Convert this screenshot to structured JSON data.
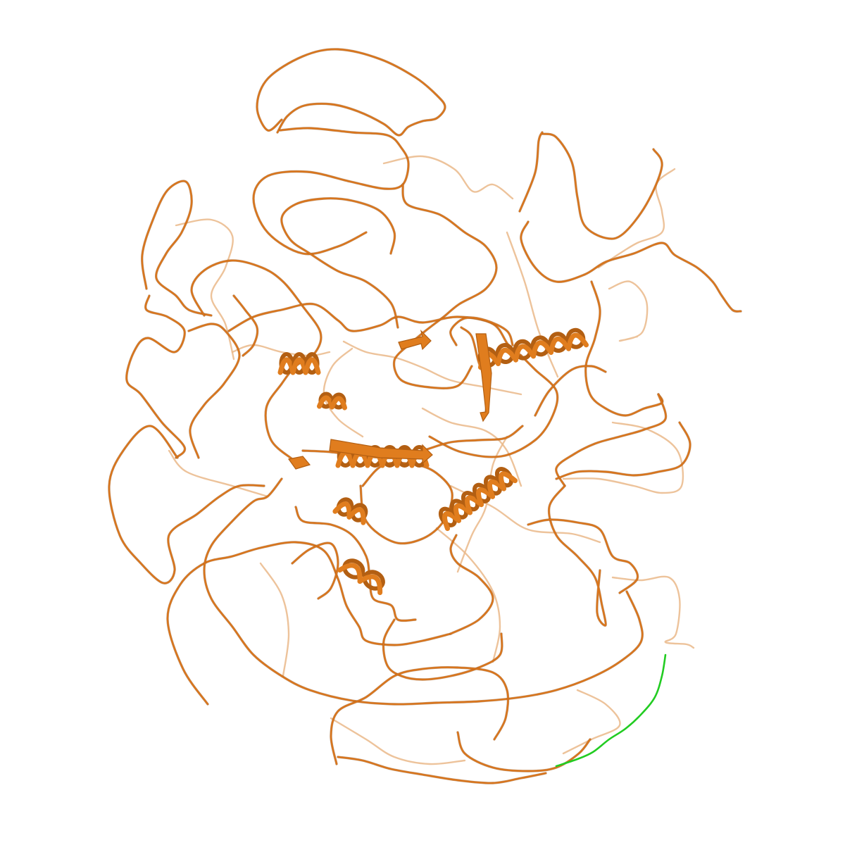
{
  "scene": {
    "background_color": "#ffffff",
    "representation": "cartoon",
    "colors": {
      "coil": "#d9751c",
      "coil_dark": "#8a4a12",
      "coil_faded": "#eab98a",
      "helix": "#e07d1e",
      "helix_shade": "#b35f12",
      "segment_highlight": "#22cc22"
    }
  }
}
